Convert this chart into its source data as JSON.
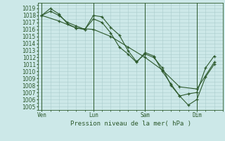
{
  "bg_color": "#cce8e8",
  "grid_color": "#aacccc",
  "line_color": "#2d5a2d",
  "ylabel": "Pression niveau de la mer( hPa )",
  "ylim": [
    1004.5,
    1019.8
  ],
  "yticks": [
    1005,
    1006,
    1007,
    1008,
    1009,
    1010,
    1011,
    1012,
    1013,
    1014,
    1015,
    1016,
    1017,
    1018,
    1019
  ],
  "xtick_labels": [
    "Ven",
    "Lun",
    "Sam",
    "Dim"
  ],
  "xtick_positions": [
    0,
    30,
    60,
    90
  ],
  "xlim": [
    -2,
    105
  ],
  "series1_x": [
    0,
    5,
    10,
    15,
    20,
    25,
    30,
    35,
    40,
    45,
    50,
    55,
    60,
    65,
    70,
    75,
    80,
    85,
    90,
    95,
    100
  ],
  "series1_y": [
    1018.0,
    1018.6,
    1018.0,
    1017.0,
    1016.5,
    1016.0,
    1018.0,
    1017.8,
    1016.3,
    1015.2,
    1013.0,
    1011.4,
    1012.5,
    1012.0,
    1010.5,
    1008.0,
    1006.5,
    1005.2,
    1006.0,
    1009.2,
    1011.0
  ],
  "series2_x": [
    0,
    5,
    10,
    15,
    20,
    25,
    30,
    35,
    40,
    45,
    50,
    55,
    60,
    65,
    70,
    75,
    80,
    85,
    90,
    95,
    100
  ],
  "series2_y": [
    1018.0,
    1019.0,
    1018.2,
    1016.8,
    1016.2,
    1016.0,
    1017.5,
    1017.0,
    1015.5,
    1013.5,
    1012.5,
    1011.3,
    1012.7,
    1012.2,
    1010.0,
    1008.2,
    1006.5,
    1006.8,
    1007.0,
    1010.5,
    1012.2
  ],
  "series3_x": [
    0,
    10,
    20,
    30,
    40,
    50,
    60,
    70,
    80,
    90,
    100
  ],
  "series3_y": [
    1018.0,
    1017.2,
    1016.2,
    1016.0,
    1015.0,
    1013.5,
    1012.0,
    1010.2,
    1007.8,
    1007.5,
    1011.3
  ],
  "vlines_x": [
    0,
    30,
    60,
    90
  ],
  "tick_fontsize": 5.5,
  "xlabel_fontsize": 6.5
}
